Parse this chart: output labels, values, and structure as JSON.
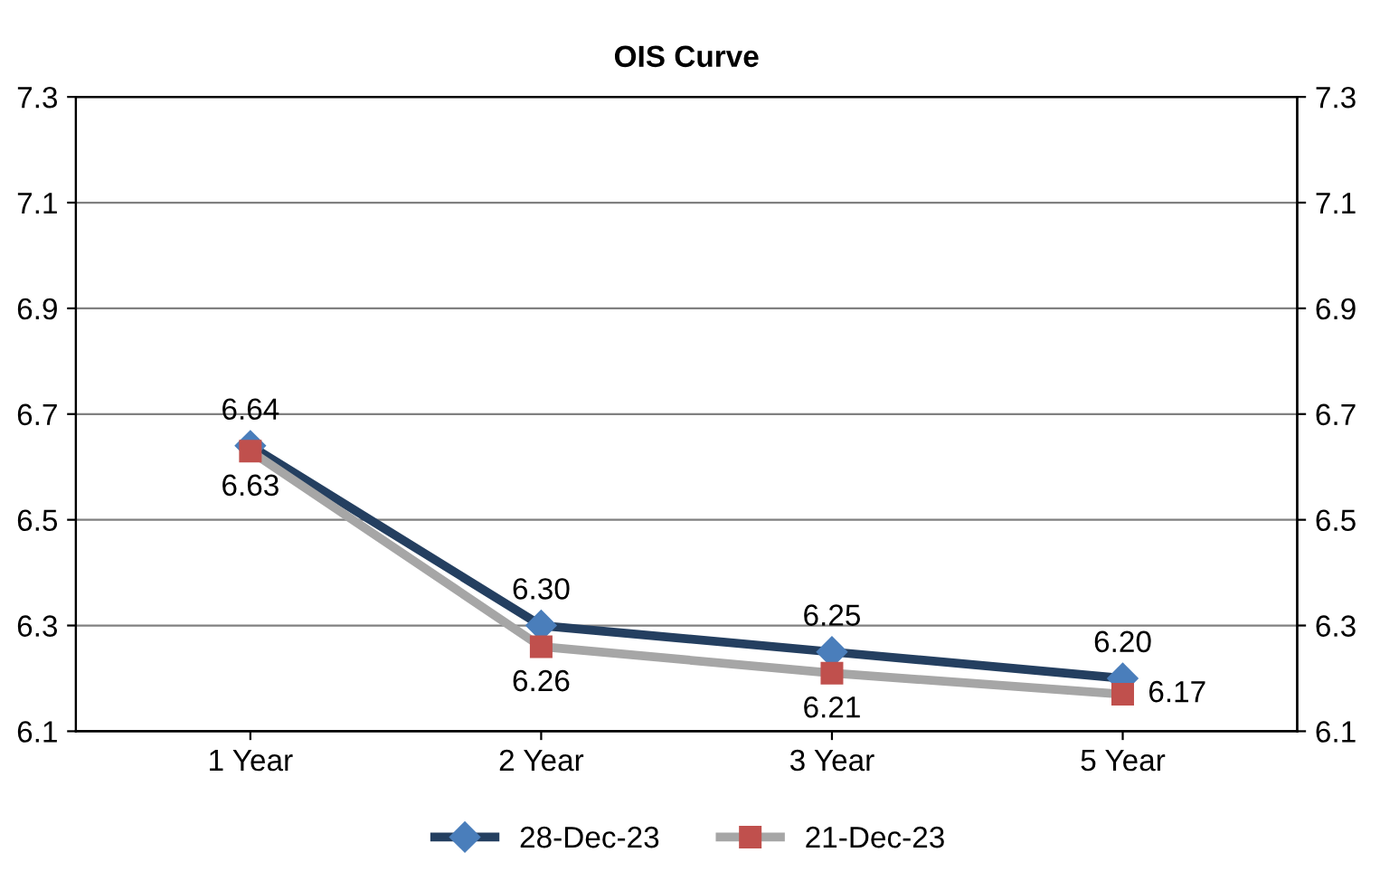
{
  "chart_data": {
    "type": "line",
    "title": "OIS Curve",
    "categories": [
      "1 Year",
      "2 Year",
      "3 Year",
      "5 Year"
    ],
    "series": [
      {
        "name": "28-Dec-23",
        "color": "#243f60",
        "colors": [
          "#4a7ebb",
          "#4a7ebb",
          "#4a7ebb",
          "#4a7ebb"
        ],
        "marker": "diamond",
        "values": [
          6.64,
          6.3,
          6.25,
          6.2
        ],
        "value_labels": [
          "6.64",
          "6.30",
          "6.25",
          "6.20"
        ]
      },
      {
        "name": "21-Dec-23",
        "color": "#a6a6a6",
        "colors": [
          "#c0504d",
          "#c0504d",
          "#c0504d",
          "#c0504d"
        ],
        "marker": "square",
        "values": [
          6.63,
          6.26,
          6.21,
          6.17
        ],
        "value_labels": [
          "6.63",
          "6.26",
          "6.21",
          "6.17"
        ]
      }
    ],
    "ylim": [
      6.1,
      7.3
    ],
    "yticks": [
      6.1,
      6.3,
      6.5,
      6.7,
      6.9,
      7.1,
      7.3
    ],
    "y2lim": [
      6.1,
      7.3
    ],
    "y2ticks": [
      6.1,
      6.3,
      6.5,
      6.7,
      6.9,
      7.1,
      7.3
    ],
    "grid": "y",
    "legend": "bottom",
    "data_labels": true,
    "line_style": "solid"
  }
}
